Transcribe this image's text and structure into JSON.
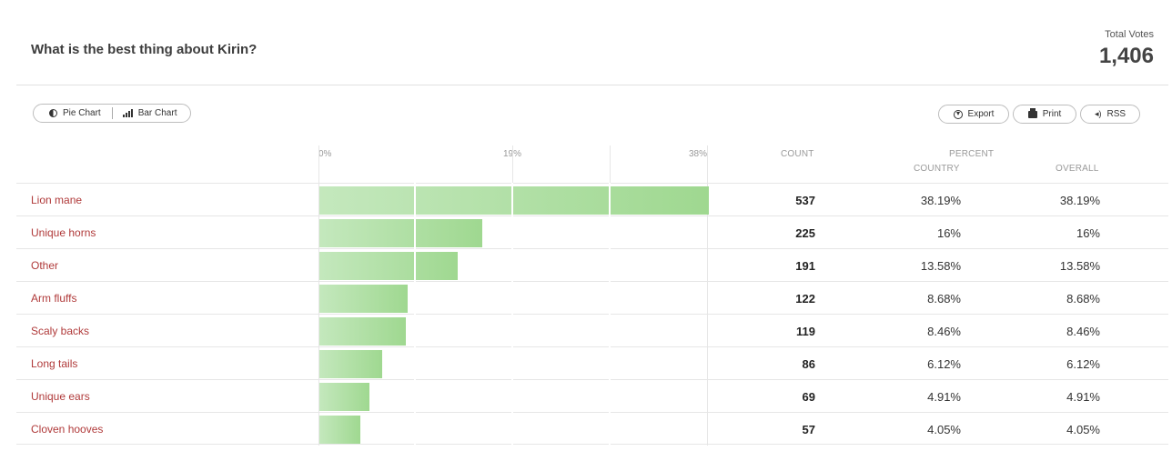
{
  "header": {
    "question": "What is the best thing about Kirin?",
    "total_label": "Total Votes",
    "total_value": "1,406"
  },
  "toolbar": {
    "pie_chart_label": "Pie Chart",
    "bar_chart_label": "Bar Chart",
    "export_label": "Export",
    "print_label": "Print",
    "rss_label": "RSS"
  },
  "columns": {
    "count": "COUNT",
    "percent": "PERCENT",
    "country": "COUNTRY",
    "overall": "OVERALL",
    "ticks": [
      "0%",
      "19%",
      "38%"
    ]
  },
  "colors": {
    "bar_start": "#c4e8bd",
    "bar_end": "#9fd890",
    "label_red": "#b03a3a"
  },
  "chart_data": {
    "type": "bar",
    "categories": [
      "Lion mane",
      "Unique horns",
      "Other",
      "Arm fluffs",
      "Scaly backs",
      "Long tails",
      "Unique ears",
      "Cloven hooves"
    ],
    "values": [
      537,
      225,
      191,
      122,
      119,
      86,
      69,
      57
    ],
    "xlim": [
      0,
      38
    ],
    "tick_labels": [
      "0%",
      "19%",
      "38%"
    ]
  },
  "rows": [
    {
      "label": "Lion mane",
      "count": "537",
      "country": "38.19%",
      "overall": "38.19%",
      "pct": 38.19
    },
    {
      "label": "Unique horns",
      "count": "225",
      "country": "16%",
      "overall": "16%",
      "pct": 16.0
    },
    {
      "label": "Other",
      "count": "191",
      "country": "13.58%",
      "overall": "13.58%",
      "pct": 13.58
    },
    {
      "label": "Arm fluffs",
      "count": "122",
      "country": "8.68%",
      "overall": "8.68%",
      "pct": 8.68
    },
    {
      "label": "Scaly backs",
      "count": "119",
      "country": "8.46%",
      "overall": "8.46%",
      "pct": 8.46
    },
    {
      "label": "Long tails",
      "count": "86",
      "country": "6.12%",
      "overall": "6.12%",
      "pct": 6.12
    },
    {
      "label": "Unique ears",
      "count": "69",
      "country": "4.91%",
      "overall": "4.91%",
      "pct": 4.91
    },
    {
      "label": "Cloven hooves",
      "count": "57",
      "country": "4.05%",
      "overall": "4.05%",
      "pct": 4.05
    }
  ]
}
